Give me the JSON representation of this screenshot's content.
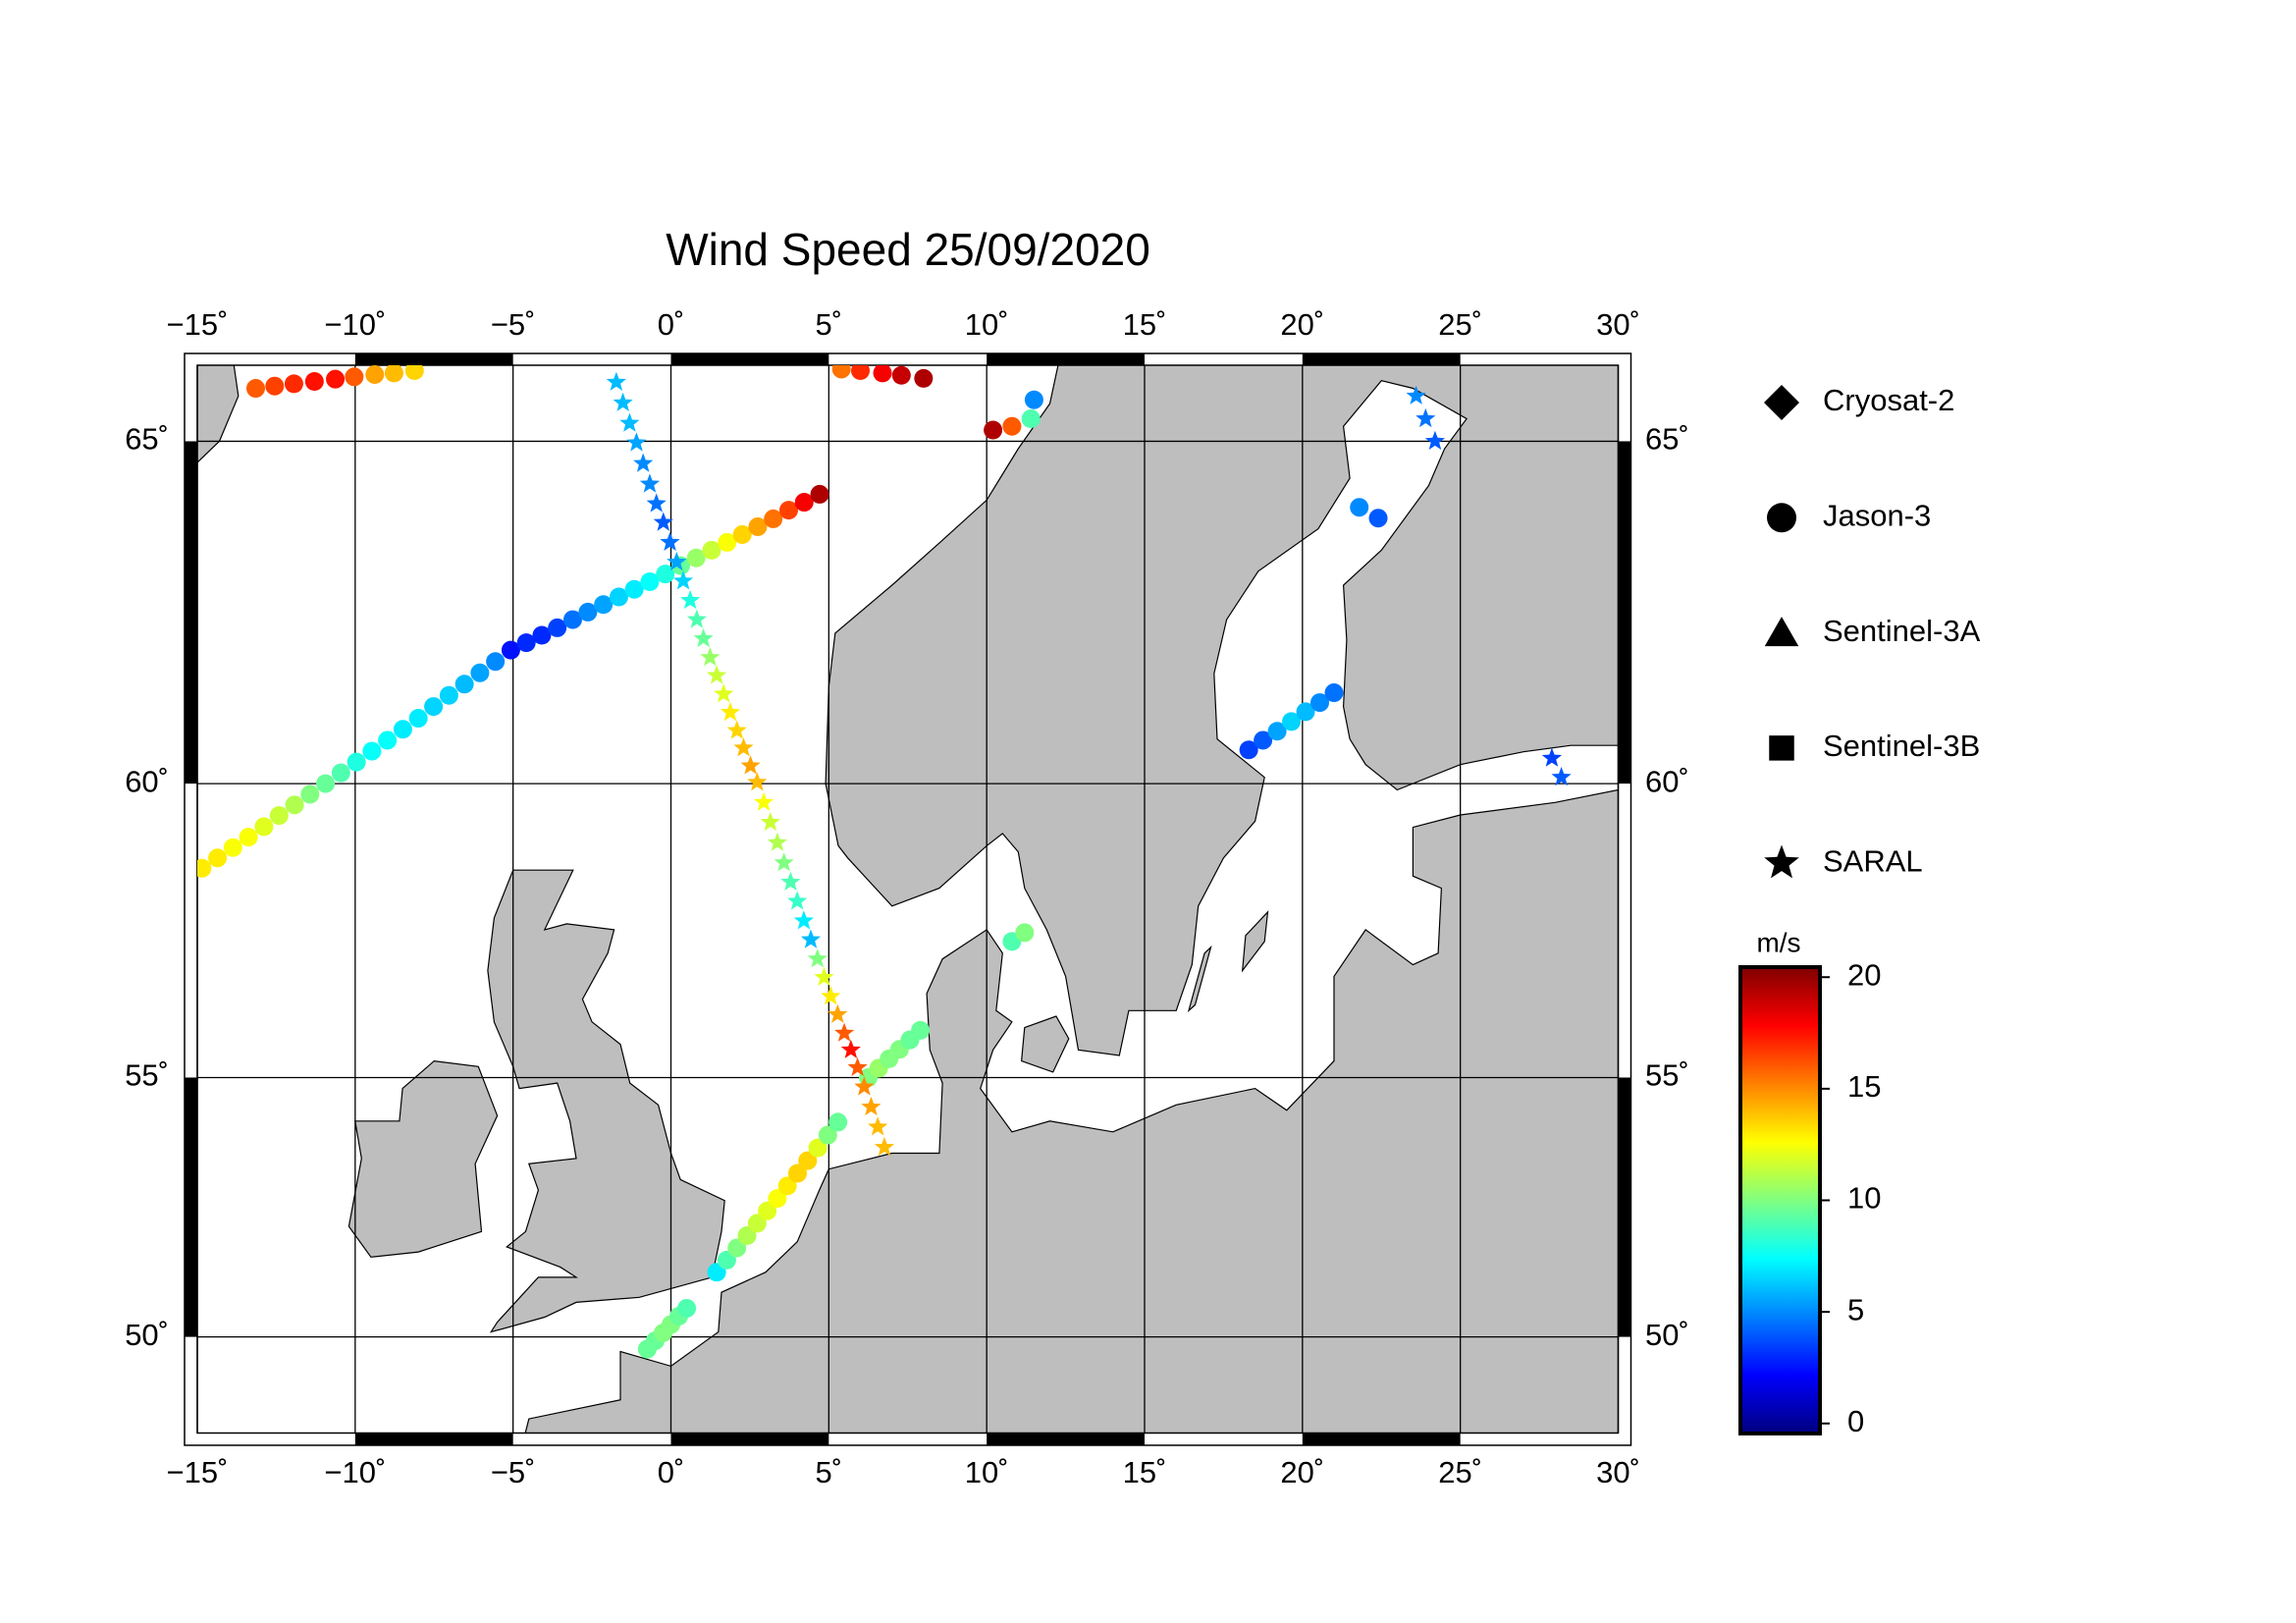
{
  "chart_data": {
    "type": "map",
    "title": "Wind Speed 25/09/2020",
    "xlim": [
      -15,
      30
    ],
    "ylim": [
      48,
      66
    ],
    "xticks": [
      {
        "value": -15,
        "label": "−15˚"
      },
      {
        "value": -10,
        "label": "−10˚"
      },
      {
        "value": -5,
        "label": "−5˚"
      },
      {
        "value": 0,
        "label": "0˚"
      },
      {
        "value": 5,
        "label": "5˚"
      },
      {
        "value": 10,
        "label": "10˚"
      },
      {
        "value": 15,
        "label": "15˚"
      },
      {
        "value": 20,
        "label": "20˚"
      },
      {
        "value": 25,
        "label": "25˚"
      },
      {
        "value": 30,
        "label": "30˚"
      }
    ],
    "yticks": [
      {
        "value": 50,
        "label": "50˚"
      },
      {
        "value": 55,
        "label": "55˚"
      },
      {
        "value": 60,
        "label": "60˚"
      },
      {
        "value": 65,
        "label": "65˚"
      }
    ],
    "grid": true,
    "colormap": "jet",
    "colorbar": {
      "label": "m/s",
      "lim": [
        -0.45,
        20.45
      ],
      "ticks": [
        0,
        5,
        10,
        15,
        20
      ]
    },
    "series": [
      {
        "name": "Cryosat-2",
        "marker": "diamond",
        "lon": [],
        "lat": [],
        "values": []
      },
      {
        "name": "Jason-3",
        "marker": "circle",
        "lon": [
          -13.15,
          -12.55,
          -11.94,
          -11.29,
          -10.63,
          -10.03,
          -9.38,
          -8.77,
          -8.12,
          5.4,
          6.0,
          6.7,
          7.3,
          8.0,
          10.2,
          10.8,
          11.4,
          11.5,
          -14.85,
          -14.36,
          -13.87,
          -13.38,
          -12.89,
          -12.41,
          -11.92,
          -11.43,
          -10.94,
          -10.45,
          -9.96,
          -9.47,
          -8.98,
          -8.49,
          -8.0,
          -7.52,
          -7.03,
          -6.54,
          -6.05,
          -5.56,
          -5.07,
          -4.58,
          -4.09,
          -3.6,
          -3.11,
          -2.63,
          -2.14,
          -1.65,
          -1.16,
          -0.67,
          -0.18,
          0.31,
          0.8,
          1.29,
          1.78,
          2.26,
          2.75,
          3.24,
          3.73,
          4.22,
          4.71,
          -0.75,
          -0.5,
          -0.25,
          0,
          0.25,
          0.5,
          1.45,
          1.77,
          2.09,
          2.41,
          2.73,
          3.05,
          3.37,
          3.69,
          4.01,
          4.33,
          4.65,
          4.97,
          5.29,
          6.25,
          6.58,
          6.91,
          7.24,
          7.57,
          7.9,
          10.8,
          11.2,
          18.3,
          18.75,
          19.2,
          19.65,
          20.1,
          20.55,
          21.0,
          21.8,
          22.4
        ],
        "lat": [
          65.7,
          65.73,
          65.76,
          65.79,
          65.82,
          65.85,
          65.88,
          65.9,
          65.93,
          65.95,
          65.93,
          65.9,
          65.87,
          65.83,
          65.15,
          65.2,
          65.3,
          65.55,
          58.63,
          58.8,
          58.97,
          59.14,
          59.31,
          59.49,
          59.66,
          59.83,
          60.0,
          60.17,
          60.34,
          60.51,
          60.68,
          60.85,
          61.02,
          61.2,
          61.37,
          61.54,
          61.71,
          61.88,
          62.05,
          62.16,
          62.27,
          62.38,
          62.5,
          62.61,
          62.72,
          62.83,
          62.94,
          63.05,
          63.16,
          63.28,
          63.39,
          63.5,
          63.61,
          63.72,
          63.83,
          63.94,
          64.06,
          64.17,
          64.28,
          49.75,
          49.92,
          50.08,
          50.25,
          50.42,
          50.58,
          51.3,
          51.54,
          51.78,
          52.02,
          52.26,
          52.5,
          52.74,
          52.98,
          53.22,
          53.46,
          53.7,
          53.94,
          54.18,
          55.0,
          55.17,
          55.34,
          55.51,
          55.68,
          55.85,
          57.4,
          57.55,
          60.53,
          60.68,
          60.82,
          60.97,
          61.12,
          61.26,
          61.41,
          64.1,
          63.95
        ],
        "values": [
          16,
          16.5,
          17,
          17.5,
          17.5,
          16,
          14.5,
          14,
          13.5,
          15.5,
          17,
          18,
          19,
          19.5,
          19.5,
          16,
          9,
          5,
          13,
          13,
          12.5,
          12.5,
          12,
          11.5,
          11,
          10,
          9.5,
          9,
          8,
          7.5,
          7.5,
          7,
          7,
          6.5,
          6.5,
          6,
          5.5,
          5,
          2.5,
          3,
          3,
          3.5,
          4.5,
          5,
          5.5,
          6.5,
          7,
          7.5,
          8,
          9.5,
          10.5,
          11.5,
          12.5,
          13.5,
          14.5,
          15.5,
          16.5,
          18,
          19.5,
          9.5,
          9.5,
          10,
          10,
          9.5,
          9,
          7,
          9,
          10,
          11,
          11.5,
          12,
          12.5,
          13,
          13.5,
          13.5,
          12,
          10,
          9.5,
          10,
          10.5,
          10,
          10,
          9.5,
          9.5,
          9,
          10,
          3.5,
          4,
          5.5,
          6.5,
          6,
          5,
          4.5,
          5,
          4
        ]
      },
      {
        "name": "Sentinel-3A",
        "marker": "triangle",
        "lon": [],
        "lat": [],
        "values": []
      },
      {
        "name": "Sentinel-3B",
        "marker": "square",
        "lon": [],
        "lat": [],
        "values": []
      },
      {
        "name": "SARAL",
        "marker": "star",
        "lon": [
          -1.73,
          -1.52,
          -1.31,
          -1.09,
          -0.88,
          -0.67,
          -0.46,
          -0.24,
          -0.03,
          0.18,
          0.39,
          0.61,
          0.82,
          1.03,
          1.24,
          1.45,
          1.67,
          1.88,
          2.09,
          2.3,
          2.52,
          2.73,
          2.94,
          3.15,
          3.37,
          3.58,
          3.79,
          4.0,
          4.21,
          4.43,
          4.64,
          4.85,
          5.06,
          5.28,
          5.49,
          5.7,
          5.91,
          6.12,
          6.34,
          6.55,
          6.76,
          23.6,
          23.9,
          24.2,
          27.9,
          28.2
        ],
        "lat": [
          65.78,
          65.51,
          65.24,
          64.98,
          64.7,
          64.42,
          64.15,
          63.89,
          63.61,
          63.33,
          63.06,
          62.78,
          62.5,
          62.22,
          61.94,
          61.67,
          61.39,
          61.11,
          60.83,
          60.56,
          60.28,
          60.02,
          59.7,
          59.38,
          59.05,
          58.72,
          58.4,
          58.08,
          57.75,
          57.43,
          57.1,
          56.78,
          56.45,
          56.13,
          55.8,
          55.5,
          55.18,
          54.83,
          54.46,
          54.09,
          53.71,
          65.6,
          65.3,
          65.0,
          60.4,
          60.1
        ],
        "values": [
          6,
          6,
          6,
          5.5,
          5,
          5,
          4.5,
          4,
          4.5,
          5.5,
          6.5,
          8,
          9,
          9.5,
          10.5,
          11.5,
          12,
          13,
          13.5,
          14,
          14.5,
          14,
          12.5,
          11.5,
          11,
          10,
          9,
          8.5,
          7,
          6,
          10,
          12,
          13,
          14.5,
          16,
          17.5,
          16,
          15,
          14.5,
          14,
          14,
          5,
          4.5,
          4,
          3.5,
          4
        ]
      }
    ]
  }
}
